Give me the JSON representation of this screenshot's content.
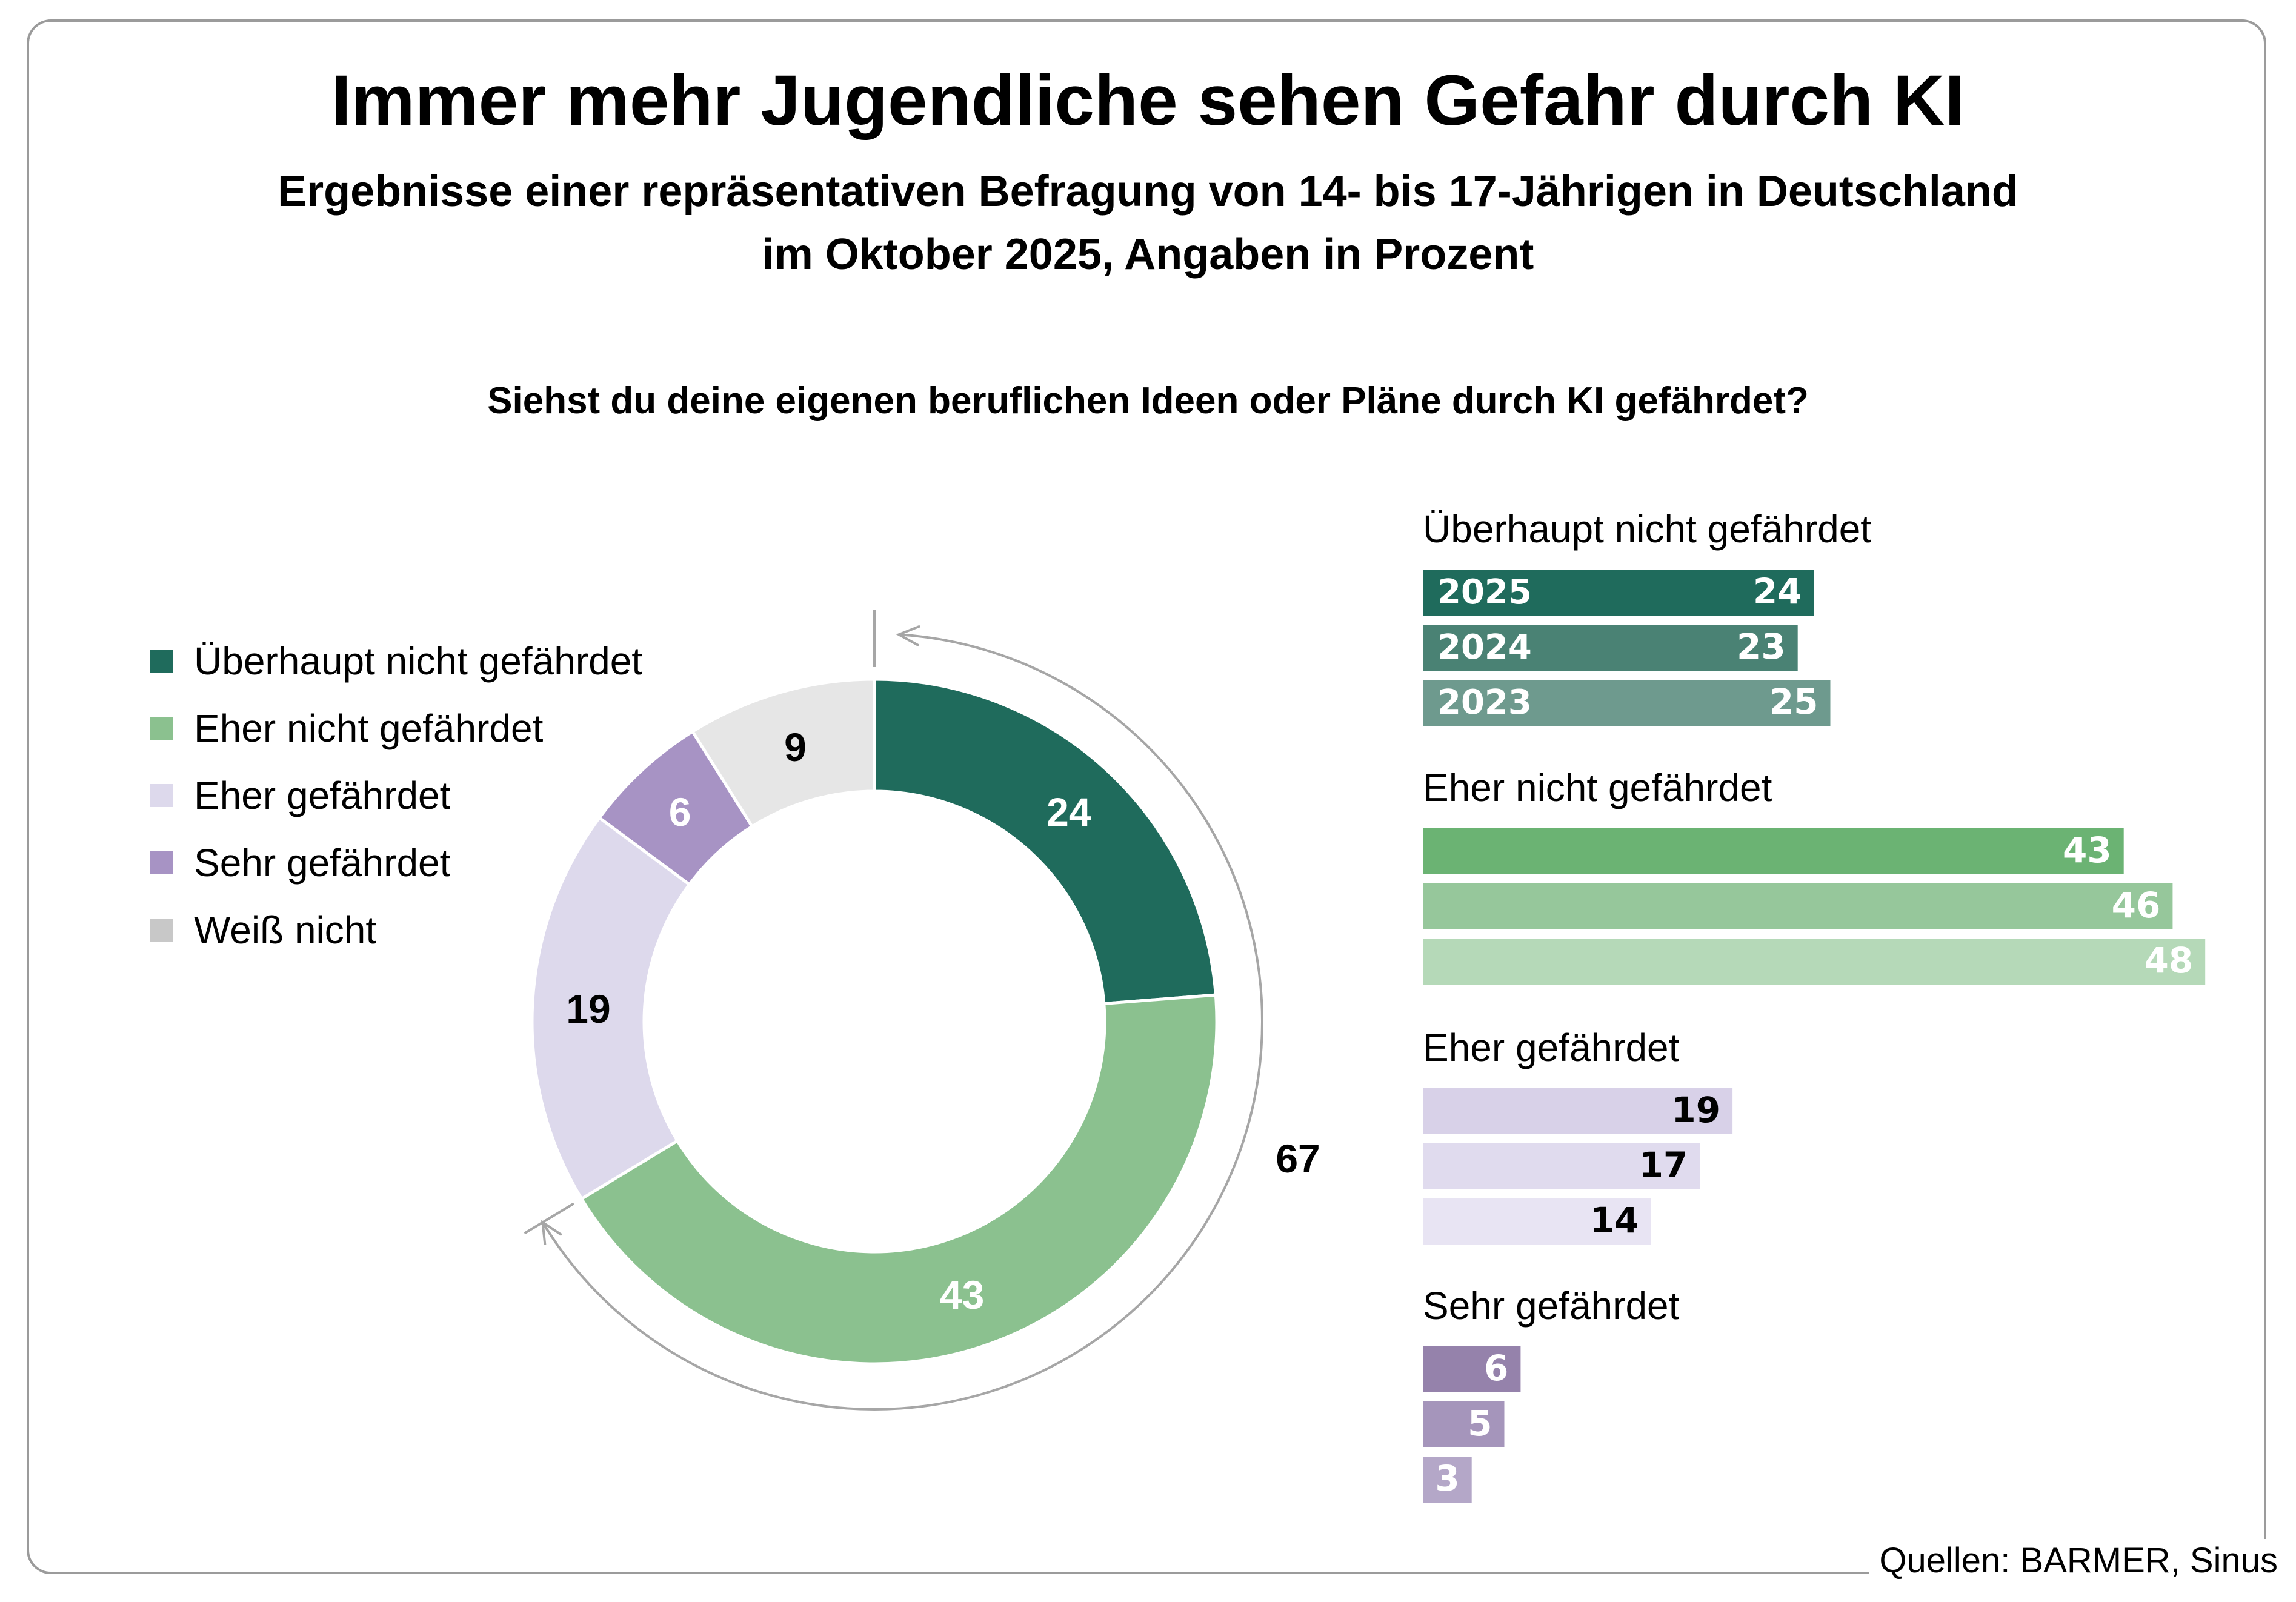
{
  "header": {
    "title": "Immer mehr Jugendliche sehen Gefahr durch KI",
    "subtitle_line1": "Ergebnisse einer repräsentativen Befragung von 14- bis 17-Jährigen in Deutschland",
    "subtitle_line2": "im Oktober 2025, Angaben in Prozent",
    "question": "Siehst du deine eigenen beruflichen Ideen oder Pläne durch KI gefährdet?"
  },
  "source": "Quellen: BARMER, Sinus",
  "chart_data": [
    {
      "type": "pie",
      "variant": "donut",
      "categories": [
        "Überhaupt nicht gefährdet",
        "Eher nicht gefährdet",
        "Eher gefährdet",
        "Sehr gefährdet",
        "Weiß nicht"
      ],
      "values": [
        24,
        43,
        19,
        6,
        9
      ],
      "value_labels": [
        "24",
        "43",
        "19",
        "6",
        "9"
      ],
      "colors": [
        "#1f6b5c",
        "#8bc18f",
        "#ddd9ec",
        "#a793c4",
        "#e6e6e6"
      ],
      "label_colors": [
        "#ffffff",
        "#ffffff",
        "#000000",
        "#ffffff",
        "#000000"
      ],
      "legend_colors": [
        "#1f6b5c",
        "#8bc18f",
        "#ddd9ec",
        "#a793c4",
        "#c8c8c8"
      ],
      "legend_position": "left",
      "annotation": {
        "label": "67",
        "covers": [
          "Überhaupt nicht gefährdet",
          "Eher nicht gefährdet"
        ]
      }
    },
    {
      "type": "bar",
      "orientation": "horizontal",
      "series_names": [
        "2025",
        "2024",
        "2023"
      ],
      "groups": [
        {
          "label": "Überhaupt nicht gefährdet",
          "values": [
            24,
            23,
            25
          ],
          "colors": [
            "#1f6b5c",
            "#4a8274",
            "#6e9a8e"
          ],
          "value_label_color": "#ffffff"
        },
        {
          "label": "Eher nicht gefährdet",
          "values": [
            43,
            46,
            48
          ],
          "colors": [
            "#6bb373",
            "#96c79b",
            "#b5d9b8"
          ],
          "value_label_color": "#ffffff"
        },
        {
          "label": "Eher gefährdet",
          "values": [
            19,
            17,
            14
          ],
          "colors": [
            "#d8d1e8",
            "#e0dbee",
            "#e8e4f3"
          ],
          "value_label_color": "#000000"
        },
        {
          "label": "Sehr gefährdet",
          "values": [
            6,
            5,
            3
          ],
          "colors": [
            "#9582ab",
            "#a595bb",
            "#b4a7c8"
          ],
          "value_label_color": "#ffffff"
        }
      ]
    }
  ]
}
